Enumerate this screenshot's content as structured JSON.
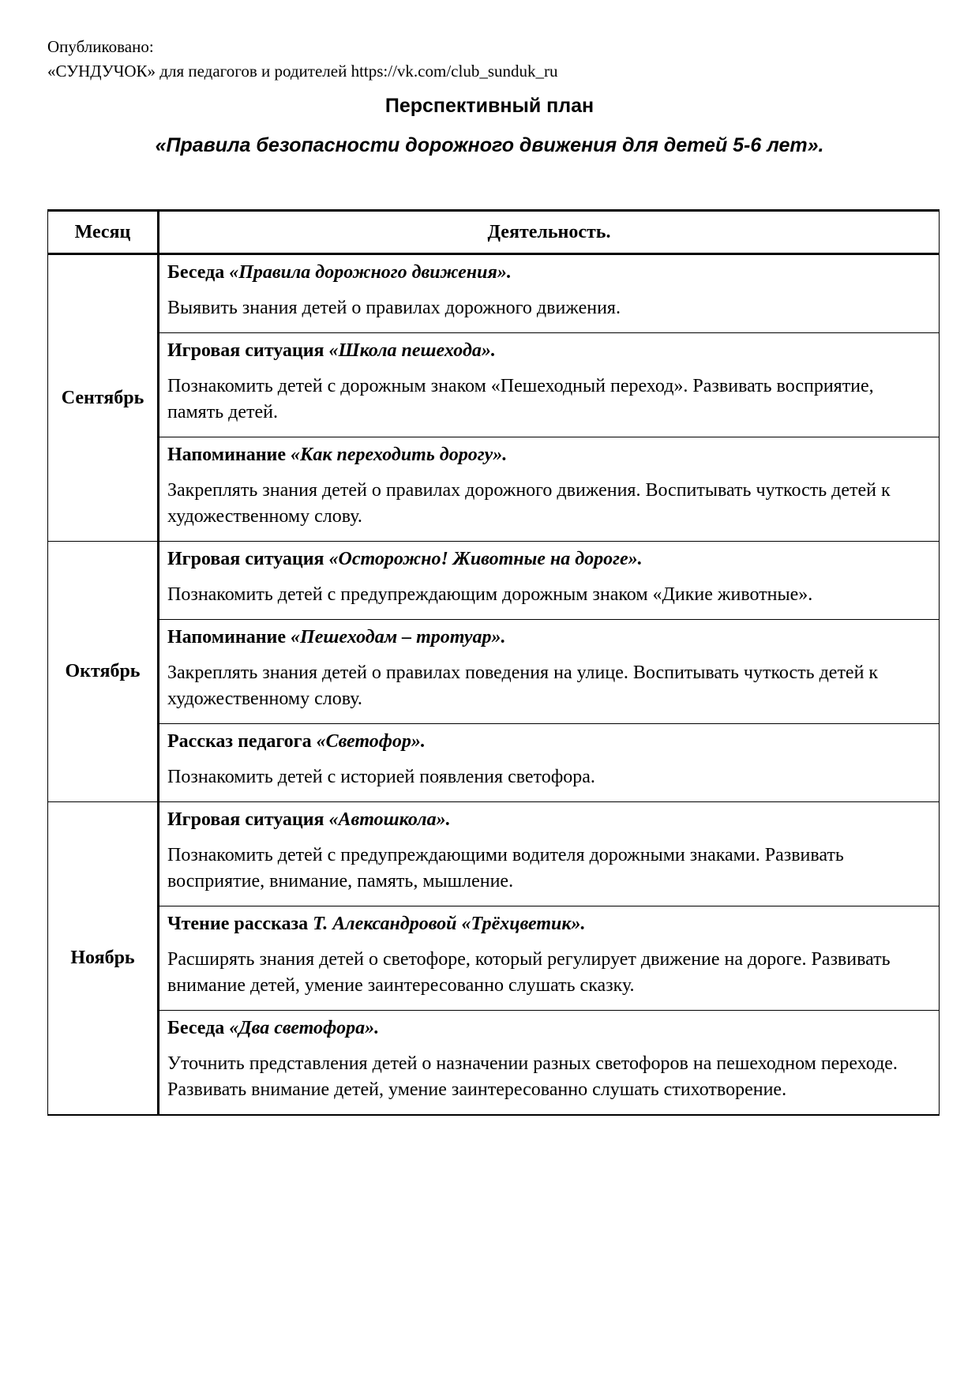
{
  "header": {
    "line1": "Опубликовано:",
    "line2": "«СУНДУЧОК» для педагогов и родителей https://vk.com/club_sunduk_ru"
  },
  "title": "Перспективный план",
  "subtitle": "«Правила безопасности дорожного движения для детей 5-6 лет».",
  "table": {
    "col_month": "Месяц",
    "col_activity": "Деятельность.",
    "months": [
      {
        "month": "Сентябрь",
        "items": [
          {
            "type": "Беседа ",
            "name": "«Правила дорожного движения».",
            "desc": "Выявить знания детей о правилах дорожного движения."
          },
          {
            "type": "Игровая ситуация ",
            "name": "«Школа пешехода».",
            "desc": "Познакомить детей с дорожным знаком «Пешеходный переход». Развивать восприятие, память детей."
          },
          {
            "type": "Напоминание ",
            "name": "«Как переходить дорогу».",
            "desc": "Закреплять знания детей о правилах дорожного движения. Воспитывать чуткость детей к художественному слову."
          }
        ]
      },
      {
        "month": "Октябрь",
        "items": [
          {
            "type": "Игровая ситуация ",
            "name": "«Осторожно! Животные на дороге».",
            "desc": "Познакомить детей с предупреждающим дорожным знаком «Дикие животные»."
          },
          {
            "type": "Напоминание ",
            "name": "«Пешеходам – тротуар».",
            "desc": "Закреплять знания детей о правилах поведения на улице. Воспитывать чуткость детей к художественному слову."
          },
          {
            "type": "Рассказ педагога ",
            "name": "«Светофор».",
            "desc": "Познакомить детей с историей появления светофора."
          }
        ]
      },
      {
        "month": "Ноябрь",
        "items": [
          {
            "type": "Игровая ситуация ",
            "name": "«Автошкола».",
            "desc": "Познакомить детей с предупреждающими водителя дорожными знаками. Развивать восприятие, внимание, память, мышление."
          },
          {
            "type": "Чтение рассказа ",
            "name": "Т. Александровой «Трёхцветик».",
            "desc": "Расширять знания детей о светофоре, который регулирует движение на дороге. Развивать внимание детей, умение заинтересованно слушать сказку."
          },
          {
            "type": "Беседа ",
            "name": "«Два светофора».",
            "desc": "Уточнить представления детей о назначении разных светофоров на пешеходном переходе. Развивать внимание детей, умение заинтересованно слушать стихотворение."
          }
        ]
      }
    ]
  }
}
